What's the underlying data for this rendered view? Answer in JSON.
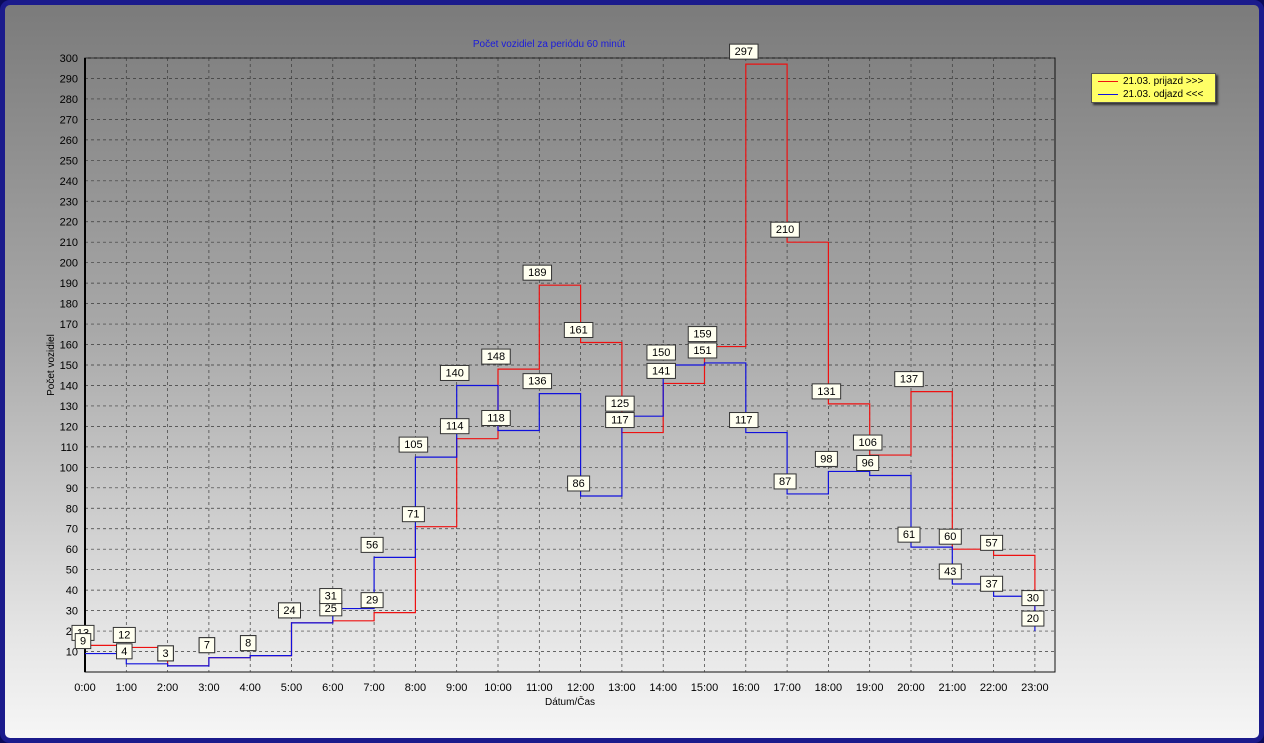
{
  "chart_data": {
    "type": "line",
    "title": "Počet vozidiel za periódu 60 minút",
    "xlabel": "Dátum/Čas",
    "ylabel": "Počet vozidiel",
    "ylim": [
      0,
      300
    ],
    "y_ticks": [
      10,
      20,
      30,
      40,
      50,
      60,
      70,
      80,
      90,
      100,
      110,
      120,
      130,
      140,
      150,
      160,
      170,
      180,
      190,
      200,
      210,
      220,
      230,
      240,
      250,
      260,
      270,
      280,
      290,
      300
    ],
    "categories": [
      "0:00",
      "1:00",
      "2:00",
      "3:00",
      "4:00",
      "5:00",
      "6:00",
      "7:00",
      "8:00",
      "9:00",
      "10:00",
      "11:00",
      "12:00",
      "13:00",
      "14:00",
      "15:00",
      "16:00",
      "17:00",
      "18:00",
      "19:00",
      "20:00",
      "21:00",
      "22:00",
      "23:00"
    ],
    "grid": true,
    "legend_position": "top-right",
    "series": [
      {
        "name": "21.03.  prijazd >>>",
        "color": "#ee1111",
        "values": [
          13,
          12,
          3,
          7,
          8,
          24,
          25,
          29,
          71,
          114,
          148,
          189,
          161,
          117,
          141,
          159,
          297,
          210,
          131,
          106,
          137,
          60,
          57,
          30
        ]
      },
      {
        "name": "21.03.  odjazd <<<",
        "color": "#1111dd",
        "values": [
          9,
          4,
          3,
          7,
          8,
          24,
          31,
          56,
          105,
          140,
          118,
          136,
          86,
          125,
          150,
          151,
          117,
          87,
          98,
          96,
          61,
          43,
          37,
          20
        ]
      }
    ]
  }
}
